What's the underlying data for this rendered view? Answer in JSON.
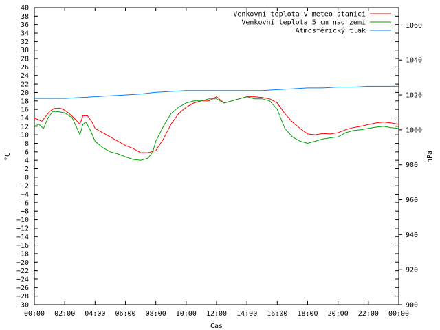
{
  "chart_data": {
    "type": "line",
    "xlabel": "Čas",
    "ylabel_left": "°C",
    "ylabel_right": "hPa",
    "x_ticks": [
      "00:00",
      "02:00",
      "04:00",
      "06:00",
      "08:00",
      "10:00",
      "12:00",
      "14:00",
      "16:00",
      "18:00",
      "20:00",
      "22:00",
      "00:00"
    ],
    "x_range_hours": [
      0,
      24
    ],
    "ylim_left": [
      -30,
      40
    ],
    "ytick_step_left": 2,
    "ylim_right": [
      900,
      1070
    ],
    "ytick_step_right": 20,
    "grid": false,
    "legend_position": "top-right",
    "series": [
      {
        "name": "Venkovní teplota v meteo stanici",
        "color": "#ff0000",
        "axis": "left",
        "x": [
          0,
          0.5,
          1,
          1.3,
          1.7,
          2,
          2.3,
          2.6,
          3,
          3.2,
          3.5,
          3.8,
          4,
          4.5,
          5,
          5.5,
          6,
          6.5,
          7,
          7.5,
          8,
          8.5,
          9,
          9.5,
          10,
          10.5,
          11,
          11.5,
          12,
          12.5,
          13,
          13.5,
          14,
          14.5,
          15,
          15.5,
          16,
          16.5,
          17,
          17.5,
          18,
          18.5,
          19,
          19.5,
          20,
          20.5,
          21,
          21.5,
          22,
          22.5,
          23,
          23.5,
          24
        ],
        "y": [
          14,
          13.2,
          15.5,
          16.2,
          16.3,
          15.8,
          15,
          14,
          12.5,
          14.5,
          14.5,
          13,
          11.5,
          10.5,
          9.5,
          8.5,
          7.5,
          6.8,
          5.8,
          5.8,
          6.3,
          9,
          12.5,
          15,
          16.5,
          17.5,
          18,
          18,
          19,
          17.5,
          18,
          18.5,
          19,
          19,
          18.8,
          18.5,
          17.5,
          15,
          13,
          11.5,
          10.2,
          10,
          10.3,
          10.2,
          10.5,
          11.2,
          11.7,
          12,
          12.4,
          12.8,
          13,
          12.8,
          12.5
        ]
      },
      {
        "name": "Venkovní teplota 5 cm nad zemí",
        "color": "#00a000",
        "axis": "left",
        "x": [
          0,
          0.3,
          0.6,
          0.9,
          1.2,
          1.5,
          2,
          2.5,
          3,
          3.2,
          3.4,
          3.7,
          4,
          4.5,
          5,
          5.5,
          6,
          6.5,
          7,
          7.5,
          7.8,
          8,
          8.5,
          9,
          9.5,
          10,
          10.5,
          11,
          11.5,
          12,
          12.5,
          13,
          13.5,
          14,
          14.5,
          15,
          15.5,
          16,
          16.5,
          17,
          17.5,
          18,
          18.5,
          19,
          19.5,
          20,
          20.5,
          21,
          21.5,
          22,
          22.5,
          23,
          23.5,
          24
        ],
        "y": [
          12,
          12.5,
          11.5,
          14,
          15.5,
          15.5,
          15.2,
          14,
          10,
          12.5,
          13,
          11,
          8.5,
          7,
          6,
          5.5,
          4.8,
          4.2,
          4,
          4.5,
          6,
          8.5,
          12,
          15,
          16.5,
          17.5,
          18,
          18,
          18.5,
          18.5,
          17.5,
          18,
          18.5,
          19,
          18.5,
          18.5,
          18,
          16,
          11.5,
          9.5,
          8.5,
          8,
          8.5,
          9,
          9.3,
          9.5,
          10.5,
          11,
          11.2,
          11.5,
          11.8,
          12,
          11.7,
          11.5
        ]
      },
      {
        "name": "Atmosférický tlak",
        "color": "#0080ff",
        "axis": "right",
        "x": [
          0,
          1,
          2,
          3,
          4,
          5,
          6,
          7,
          8,
          9,
          10,
          11,
          12,
          13,
          14,
          15,
          16,
          17,
          18,
          19,
          20,
          21,
          22,
          23,
          24
        ],
        "y": [
          1018,
          1018,
          1018,
          1018.5,
          1019,
          1019.5,
          1020,
          1020.5,
          1021.5,
          1022,
          1022.5,
          1022.5,
          1022.5,
          1022.5,
          1022.5,
          1022.5,
          1023,
          1023.5,
          1024,
          1024,
          1024.5,
          1024.5,
          1025,
          1025,
          1025
        ]
      }
    ]
  }
}
